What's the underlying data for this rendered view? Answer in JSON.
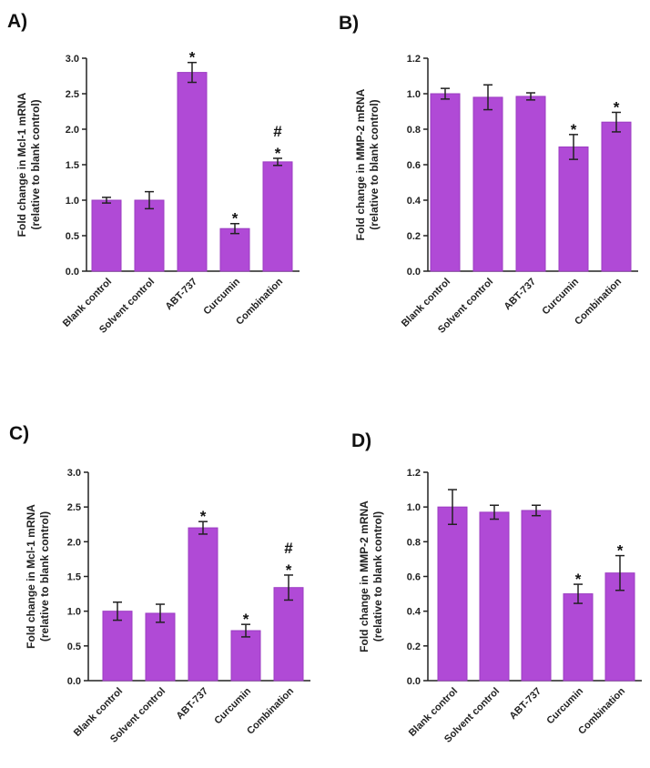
{
  "chart_data": [
    {
      "panel": "A)",
      "type": "bar",
      "categories": [
        "Blank control",
        "Solvent control",
        "ABT-737",
        "Curcumin",
        "Combination"
      ],
      "values": [
        1.0,
        1.0,
        2.8,
        0.6,
        1.54
      ],
      "errors": [
        0.04,
        0.12,
        0.14,
        0.07,
        0.05
      ],
      "annotations": [
        "",
        "",
        "*",
        "*",
        "#\n*"
      ],
      "ylabel_line1": "Fold change in Mcl-1 mRNA",
      "ylabel_line2": "(relative to blank control)",
      "ylim": [
        0,
        3.0
      ],
      "yticks": [
        "0.0",
        "0.5",
        "1.0",
        "1.5",
        "2.0",
        "2.5",
        "3.0"
      ],
      "ytick_values": [
        0,
        0.5,
        1.0,
        1.5,
        2.0,
        2.5,
        3.0
      ]
    },
    {
      "panel": "B)",
      "type": "bar",
      "categories": [
        "Blank control",
        "Solvent control",
        "ABT-737",
        "Curcumin",
        "Combination"
      ],
      "values": [
        1.0,
        0.98,
        0.985,
        0.7,
        0.84
      ],
      "errors": [
        0.03,
        0.07,
        0.02,
        0.07,
        0.055
      ],
      "annotations": [
        "",
        "",
        "",
        "*",
        "*"
      ],
      "ylabel_line1": "Fold change in MMP-2 mRNA",
      "ylabel_line2": "(relative to blank control)",
      "ylim": [
        0,
        1.2
      ],
      "yticks": [
        "0.0",
        "0.2",
        "0.4",
        "0.6",
        "0.8",
        "1.0",
        "1.2"
      ],
      "ytick_values": [
        0,
        0.2,
        0.4,
        0.6,
        0.8,
        1.0,
        1.2
      ]
    },
    {
      "panel": "C)",
      "type": "bar",
      "categories": [
        "Blank control",
        "Solvent control",
        "ABT-737",
        "Curcumin",
        "Combination"
      ],
      "values": [
        1.0,
        0.97,
        2.2,
        0.72,
        1.34
      ],
      "errors": [
        0.13,
        0.13,
        0.09,
        0.09,
        0.18
      ],
      "annotations": [
        "",
        "",
        "*",
        "*",
        "#\n*"
      ],
      "ylabel_line1": "Fold change in Mcl-1 mRNA",
      "ylabel_line2": "(relative to blank control)",
      "ylim": [
        0,
        3.0
      ],
      "yticks": [
        "0.0",
        "0.5",
        "1.0",
        "1.5",
        "2.0",
        "2.5",
        "3.0"
      ],
      "ytick_values": [
        0,
        0.5,
        1.0,
        1.5,
        2.0,
        2.5,
        3.0
      ]
    },
    {
      "panel": "D)",
      "type": "bar",
      "categories": [
        "Blank control",
        "Solvent control",
        "ABT-737",
        "Curcumin",
        "Combination"
      ],
      "values": [
        1.0,
        0.97,
        0.98,
        0.5,
        0.62
      ],
      "errors": [
        0.1,
        0.04,
        0.03,
        0.055,
        0.1
      ],
      "annotations": [
        "",
        "",
        "",
        "*",
        "*"
      ],
      "ylabel_line1": "Fold change in MMP-2 mRNA",
      "ylabel_line2": "(relative to blank control)",
      "ylim": [
        0,
        1.2
      ],
      "yticks": [
        "0.0",
        "0.2",
        "0.4",
        "0.6",
        "0.8",
        "1.0",
        "1.2"
      ],
      "ytick_values": [
        0,
        0.2,
        0.4,
        0.6,
        0.8,
        1.0,
        1.2
      ]
    }
  ],
  "colors": {
    "bar": "#b04ad6",
    "bar_stroke": "#9b3cc2",
    "axis": "#222222"
  }
}
